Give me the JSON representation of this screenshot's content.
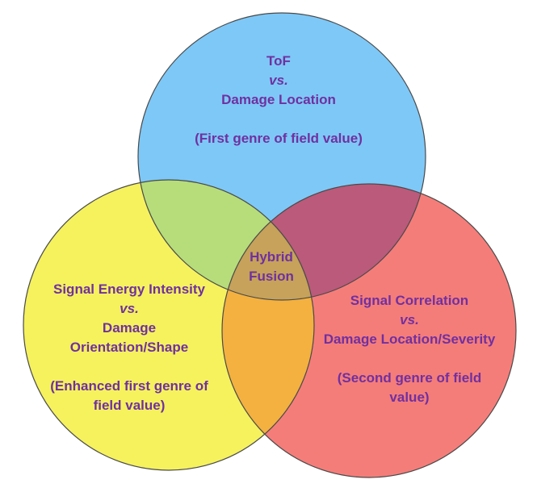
{
  "colors": {
    "top_circle": "#7ec8f7",
    "left_circle": "#f5f25e",
    "right_circle": "#f57d79",
    "text": "#7030a0",
    "outline": "#4a4a4a"
  },
  "circles": {
    "top": {
      "title": "ToF",
      "vs": "vs.",
      "subtitle": "Damage Location",
      "note": "(First genre of field value)"
    },
    "left": {
      "title": "Signal Energy Intensity",
      "vs": "vs.",
      "subtitle_line1": "Damage",
      "subtitle_line2": "Orientation/Shape",
      "note_line1": "(Enhanced first genre of",
      "note_line2": "field value)"
    },
    "right": {
      "title": "Signal Correlation",
      "vs": "vs.",
      "subtitle": "Damage Location/Severity",
      "note_line1": "(Second genre of field",
      "note_line2": "value)"
    },
    "center": {
      "line1": "Hybrid",
      "line2": "Fusion"
    }
  }
}
